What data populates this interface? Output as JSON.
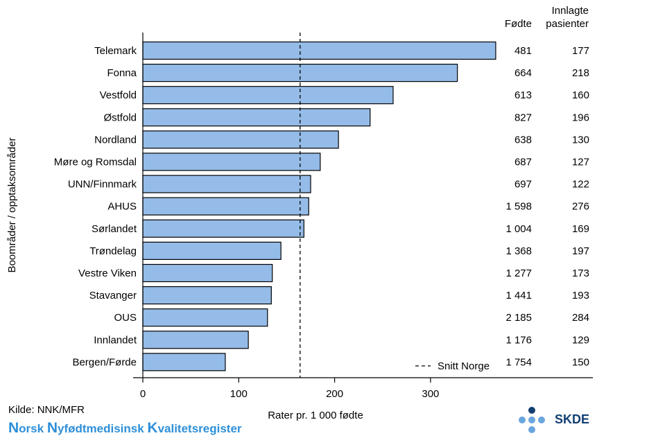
{
  "chart_data": {
    "type": "bar",
    "orientation": "horizontal",
    "categories": [
      "Telemark",
      "Fonna",
      "Vestfold",
      "Østfold",
      "Nordland",
      "Møre og Romsdal",
      "UNN/Finnmark",
      "AHUS",
      "Sørlandet",
      "Trøndelag",
      "Vestre Viken",
      "Stavanger",
      "OUS",
      "Innlandet",
      "Bergen/Førde"
    ],
    "values": [
      368,
      328,
      261,
      237,
      204,
      185,
      175,
      173,
      168,
      144,
      135,
      134,
      130,
      110,
      86
    ],
    "xlabel": "Rater pr. 1 000 fødte",
    "ylabel": "Boområder / opptaksområder",
    "xlim": [
      0,
      470
    ],
    "xticks": [
      0,
      100,
      200,
      300
    ],
    "reference_line": {
      "label": "Snitt Norge",
      "value": 164,
      "style": "dashed"
    },
    "bar_color": "#95bce8",
    "columns": {
      "fodte_header": "Fødte",
      "innlagte_header": [
        "Innlagte",
        "pasienter"
      ],
      "fodte": [
        "481",
        "664",
        "613",
        "827",
        "638",
        "687",
        "697",
        "1 598",
        "1 004",
        "1 368",
        "1 277",
        "1 441",
        "2 185",
        "1 176",
        "1 754"
      ],
      "innlagte": [
        "177",
        "218",
        "160",
        "196",
        "130",
        "127",
        "122",
        "276",
        "169",
        "197",
        "173",
        "193",
        "284",
        "129",
        "150"
      ]
    }
  },
  "source": "Kilde: NNK/MFR",
  "brand": {
    "parts": [
      {
        "big": "N",
        "rest": "orsk "
      },
      {
        "big": "N",
        "rest": "yfødtmedisinsk "
      },
      {
        "big": "K",
        "rest": "valitetsregister"
      }
    ],
    "color": "#2e8fd8"
  },
  "logo": {
    "text": "SKDE",
    "dot_dark": "#123f72",
    "dot_light": "#6aa6de"
  }
}
